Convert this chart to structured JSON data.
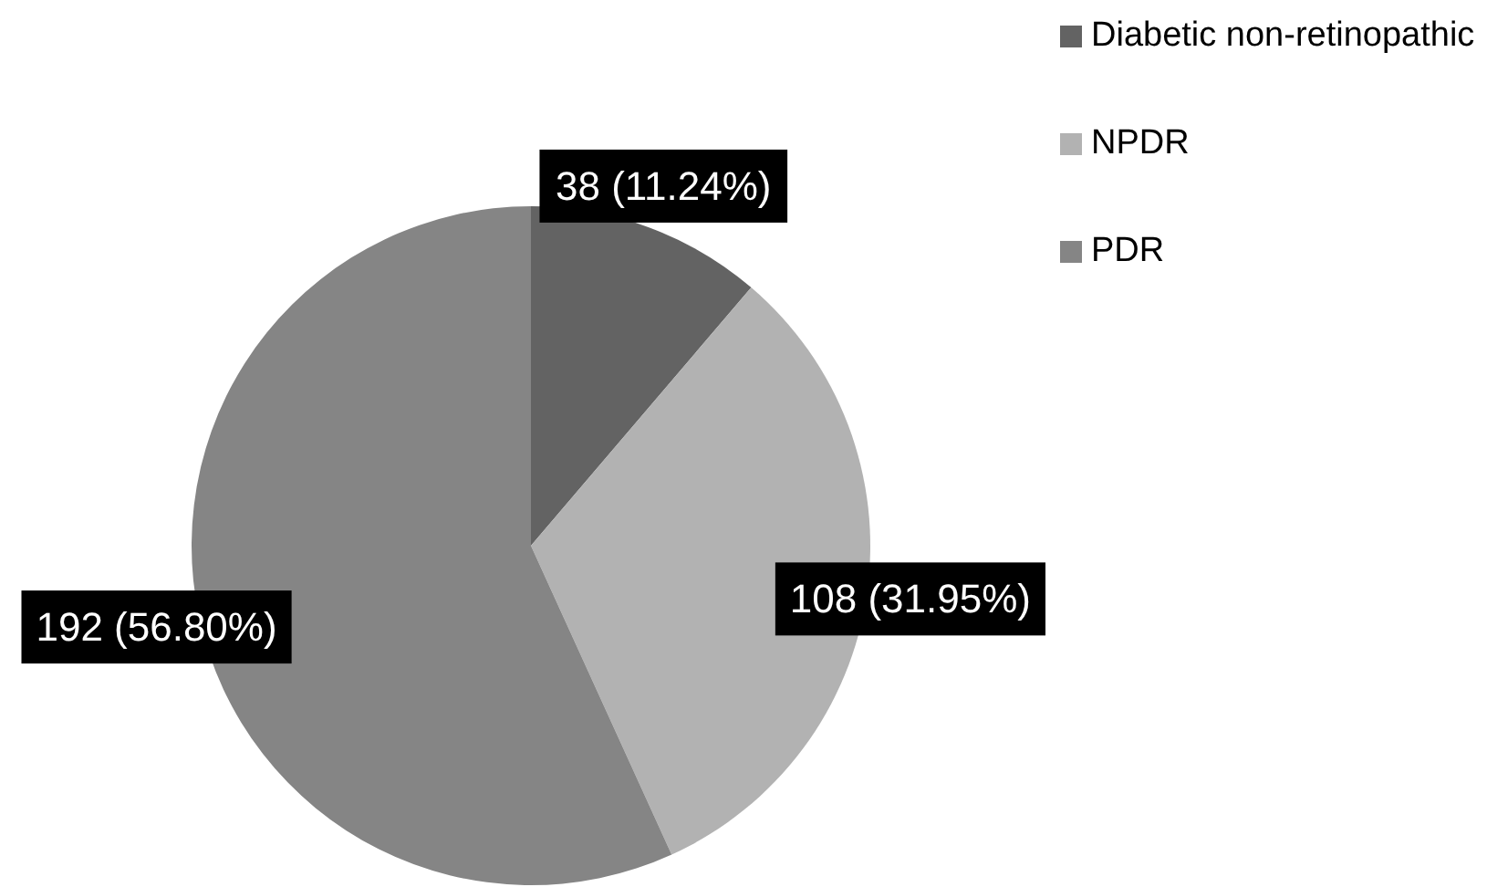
{
  "chart_data": {
    "type": "pie",
    "categories": [
      "Diabetic non-retinopathic",
      "NPDR",
      "PDR"
    ],
    "values": [
      38,
      108,
      192
    ],
    "colors": [
      "#636363",
      "#b2b2b2",
      "#858585"
    ],
    "value_labels": [
      "38 (11.24%)",
      "108 (31.95%)",
      "192 (56.80%)"
    ],
    "legend": "top right"
  }
}
